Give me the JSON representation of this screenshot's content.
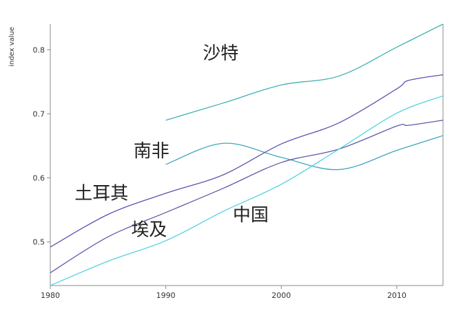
{
  "chart_data": {
    "type": "line",
    "ylabel": "index value",
    "xlabel": "",
    "xlim": [
      1980,
      2014
    ],
    "ylim": [
      0.432,
      0.84
    ],
    "x_ticks": [
      1980,
      1990,
      2000,
      2010
    ],
    "y_ticks": [
      0.5,
      0.6,
      0.7,
      0.8
    ],
    "y_tick_labels": [
      "0.5",
      "0.6",
      "0.7",
      "0.8"
    ],
    "grid": false,
    "series": [
      {
        "name": "沙特",
        "color": "#3fb0b4",
        "label_pos": [
          1993.2,
          0.785
        ],
        "x": [
          1990,
          1995,
          2000,
          2005,
          2010,
          2014
        ],
        "values": [
          0.69,
          0.717,
          0.745,
          0.759,
          0.804,
          0.84
        ]
      },
      {
        "name": "南非",
        "color": "#3ea6bf",
        "label_pos": [
          1987.2,
          0.633
        ],
        "x": [
          1990,
          1995,
          2000,
          2005,
          2010,
          2014
        ],
        "values": [
          0.621,
          0.654,
          0.632,
          0.613,
          0.643,
          0.666
        ]
      },
      {
        "name": "土耳其",
        "color": "#5b52b0",
        "label_pos": [
          1982.1,
          0.567
        ],
        "x": [
          1980,
          1985,
          1990,
          1995,
          2000,
          2005,
          2010,
          2011,
          2014
        ],
        "values": [
          0.492,
          0.543,
          0.576,
          0.605,
          0.653,
          0.686,
          0.739,
          0.752,
          0.761
        ]
      },
      {
        "name": "埃及",
        "color": "#5a5ba7",
        "label_pos": [
          1987.0,
          0.51
        ],
        "x": [
          1980,
          1985,
          1990,
          1995,
          2000,
          2005,
          2010,
          2011,
          2014
        ],
        "values": [
          0.452,
          0.508,
          0.546,
          0.584,
          0.624,
          0.645,
          0.681,
          0.682,
          0.69
        ]
      },
      {
        "name": "中国",
        "color": "#4fd2df",
        "label_pos": [
          1995.8,
          0.533
        ],
        "x": [
          1980,
          1985,
          1990,
          1995,
          2000,
          2005,
          2010,
          2014
        ],
        "values": [
          0.432,
          0.47,
          0.502,
          0.548,
          0.59,
          0.645,
          0.701,
          0.728
        ]
      }
    ]
  }
}
